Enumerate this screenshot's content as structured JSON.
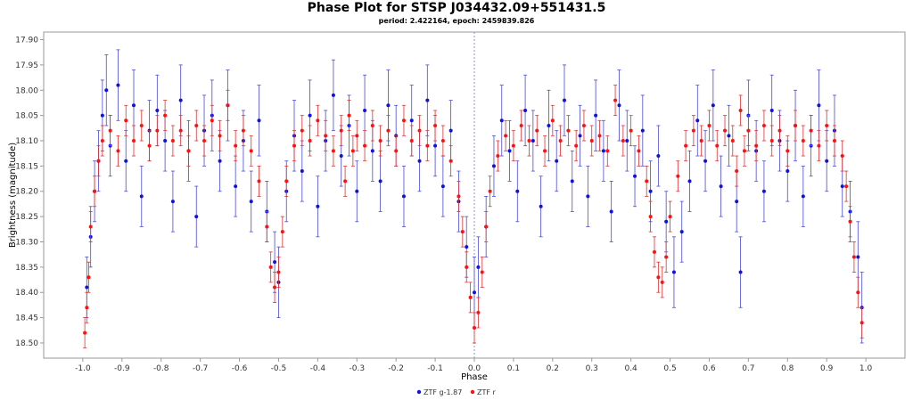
{
  "chart_data": {
    "type": "scatter",
    "title": "Phase Plot for STSP J034432.09+551431.5",
    "subtitle": "period: 2.422164, epoch: 2459839.826",
    "xlabel": "Phase",
    "ylabel": "Brightness (magnitude)",
    "xlim": [
      -1.1,
      1.1
    ],
    "ylim": [
      18.53,
      17.885
    ],
    "y_inverted": true,
    "x_ticks": [
      "-1.0",
      "-0.9",
      "-0.8",
      "-0.7",
      "-0.6",
      "-0.5",
      "-0.4",
      "-0.3",
      "-0.2",
      "-0.1",
      "0.0",
      "0.1",
      "0.2",
      "0.3",
      "0.4",
      "0.5",
      "0.6",
      "0.7",
      "0.8",
      "0.9",
      "1.0"
    ],
    "y_ticks": [
      "17.90",
      "17.95",
      "18.00",
      "18.05",
      "18.10",
      "18.15",
      "18.20",
      "18.25",
      "18.30",
      "18.35",
      "18.40",
      "18.45",
      "18.50"
    ],
    "grid": false,
    "legend_position": "bottom-center",
    "reference_line_x": 0.0,
    "series": [
      {
        "name": "ZTF g-1.87",
        "color": "#1010e0",
        "errorbar_color": "#4a4ad8",
        "points": [
          [
            -0.99,
            18.39,
            0.06
          ],
          [
            -0.98,
            18.29,
            0.06
          ],
          [
            -0.97,
            18.2,
            0.06
          ],
          [
            -0.96,
            18.14,
            0.06
          ],
          [
            -0.95,
            18.05,
            0.07
          ],
          [
            -0.94,
            18.0,
            0.07
          ],
          [
            -0.93,
            18.11,
            0.06
          ],
          [
            -0.91,
            17.99,
            0.07
          ],
          [
            -0.89,
            18.14,
            0.06
          ],
          [
            -0.87,
            18.03,
            0.07
          ],
          [
            -0.85,
            18.21,
            0.06
          ],
          [
            -0.83,
            18.08,
            0.06
          ],
          [
            -0.81,
            18.04,
            0.07
          ],
          [
            -0.79,
            18.1,
            0.06
          ],
          [
            -0.77,
            18.22,
            0.06
          ],
          [
            -0.75,
            18.02,
            0.07
          ],
          [
            -0.73,
            18.12,
            0.06
          ],
          [
            -0.71,
            18.25,
            0.06
          ],
          [
            -0.69,
            18.08,
            0.07
          ],
          [
            -0.67,
            18.05,
            0.07
          ],
          [
            -0.65,
            18.14,
            0.06
          ],
          [
            -0.63,
            18.03,
            0.07
          ],
          [
            -0.61,
            18.19,
            0.06
          ],
          [
            -0.59,
            18.1,
            0.06
          ],
          [
            -0.57,
            18.22,
            0.06
          ],
          [
            -0.55,
            18.06,
            0.07
          ],
          [
            -0.53,
            18.24,
            0.06
          ],
          [
            -0.51,
            18.34,
            0.06
          ],
          [
            -0.5,
            18.38,
            0.07
          ],
          [
            -0.48,
            18.2,
            0.06
          ],
          [
            -0.46,
            18.09,
            0.07
          ],
          [
            -0.44,
            18.16,
            0.06
          ],
          [
            -0.42,
            18.05,
            0.07
          ],
          [
            -0.4,
            18.23,
            0.06
          ],
          [
            -0.38,
            18.1,
            0.06
          ],
          [
            -0.36,
            18.01,
            0.07
          ],
          [
            -0.34,
            18.13,
            0.06
          ],
          [
            -0.32,
            18.07,
            0.06
          ],
          [
            -0.3,
            18.2,
            0.06
          ],
          [
            -0.28,
            18.04,
            0.07
          ],
          [
            -0.26,
            18.12,
            0.06
          ],
          [
            -0.24,
            18.18,
            0.06
          ],
          [
            -0.22,
            18.03,
            0.07
          ],
          [
            -0.2,
            18.09,
            0.06
          ],
          [
            -0.18,
            18.21,
            0.06
          ],
          [
            -0.16,
            18.06,
            0.07
          ],
          [
            -0.14,
            18.14,
            0.06
          ],
          [
            -0.12,
            18.02,
            0.07
          ],
          [
            -0.1,
            18.11,
            0.06
          ],
          [
            -0.08,
            18.19,
            0.06
          ],
          [
            -0.06,
            18.08,
            0.06
          ],
          [
            -0.04,
            18.22,
            0.06
          ],
          [
            -0.02,
            18.31,
            0.06
          ],
          [
            0.0,
            18.4,
            0.07
          ],
          [
            0.01,
            18.35,
            0.06
          ],
          [
            0.03,
            18.27,
            0.06
          ],
          [
            0.05,
            18.15,
            0.06
          ],
          [
            0.07,
            18.06,
            0.07
          ],
          [
            0.09,
            18.12,
            0.06
          ],
          [
            0.11,
            18.2,
            0.06
          ],
          [
            0.13,
            18.04,
            0.07
          ],
          [
            0.15,
            18.1,
            0.06
          ],
          [
            0.17,
            18.23,
            0.06
          ],
          [
            0.19,
            18.07,
            0.07
          ],
          [
            0.21,
            18.14,
            0.06
          ],
          [
            0.23,
            18.02,
            0.07
          ],
          [
            0.25,
            18.18,
            0.06
          ],
          [
            0.27,
            18.09,
            0.06
          ],
          [
            0.29,
            18.21,
            0.06
          ],
          [
            0.31,
            18.05,
            0.07
          ],
          [
            0.33,
            18.12,
            0.06
          ],
          [
            0.35,
            18.24,
            0.06
          ],
          [
            0.37,
            18.03,
            0.07
          ],
          [
            0.39,
            18.1,
            0.06
          ],
          [
            0.41,
            18.17,
            0.06
          ],
          [
            0.43,
            18.08,
            0.07
          ],
          [
            0.45,
            18.2,
            0.06
          ],
          [
            0.47,
            18.13,
            0.06
          ],
          [
            0.49,
            18.26,
            0.06
          ],
          [
            0.51,
            18.36,
            0.07
          ],
          [
            0.53,
            18.28,
            0.06
          ],
          [
            0.55,
            18.18,
            0.06
          ],
          [
            0.57,
            18.06,
            0.07
          ],
          [
            0.59,
            18.14,
            0.06
          ],
          [
            0.61,
            18.03,
            0.07
          ],
          [
            0.63,
            18.19,
            0.06
          ],
          [
            0.65,
            18.09,
            0.06
          ],
          [
            0.67,
            18.22,
            0.06
          ],
          [
            0.68,
            18.36,
            0.07
          ],
          [
            0.7,
            18.05,
            0.07
          ],
          [
            0.72,
            18.12,
            0.06
          ],
          [
            0.74,
            18.2,
            0.06
          ],
          [
            0.76,
            18.04,
            0.07
          ],
          [
            0.78,
            18.1,
            0.06
          ],
          [
            0.8,
            18.16,
            0.06
          ],
          [
            0.82,
            18.07,
            0.07
          ],
          [
            0.84,
            18.21,
            0.06
          ],
          [
            0.86,
            18.11,
            0.06
          ],
          [
            0.88,
            18.03,
            0.07
          ],
          [
            0.9,
            18.14,
            0.06
          ],
          [
            0.92,
            18.08,
            0.07
          ],
          [
            0.94,
            18.19,
            0.06
          ],
          [
            0.96,
            18.24,
            0.06
          ],
          [
            0.98,
            18.33,
            0.07
          ],
          [
            0.99,
            18.43,
            0.07
          ]
        ]
      },
      {
        "name": "ZTF r",
        "color": "#ff1010",
        "errorbar_color": "#e03030",
        "points": [
          [
            -0.995,
            18.48,
            0.03
          ],
          [
            -0.99,
            18.43,
            0.03
          ],
          [
            -0.985,
            18.37,
            0.03
          ],
          [
            -0.98,
            18.27,
            0.03
          ],
          [
            -0.97,
            18.2,
            0.03
          ],
          [
            -0.96,
            18.14,
            0.03
          ],
          [
            -0.95,
            18.1,
            0.03
          ],
          [
            -0.93,
            18.08,
            0.03
          ],
          [
            -0.91,
            18.12,
            0.03
          ],
          [
            -0.89,
            18.06,
            0.03
          ],
          [
            -0.87,
            18.1,
            0.03
          ],
          [
            -0.85,
            18.07,
            0.03
          ],
          [
            -0.83,
            18.11,
            0.03
          ],
          [
            -0.81,
            18.08,
            0.03
          ],
          [
            -0.79,
            18.05,
            0.03
          ],
          [
            -0.77,
            18.1,
            0.03
          ],
          [
            -0.75,
            18.08,
            0.03
          ],
          [
            -0.73,
            18.12,
            0.03
          ],
          [
            -0.71,
            18.07,
            0.03
          ],
          [
            -0.69,
            18.1,
            0.03
          ],
          [
            -0.67,
            18.06,
            0.03
          ],
          [
            -0.65,
            18.09,
            0.03
          ],
          [
            -0.63,
            18.03,
            0.03
          ],
          [
            -0.61,
            18.11,
            0.03
          ],
          [
            -0.59,
            18.08,
            0.03
          ],
          [
            -0.57,
            18.12,
            0.03
          ],
          [
            -0.55,
            18.18,
            0.03
          ],
          [
            -0.53,
            18.27,
            0.03
          ],
          [
            -0.52,
            18.35,
            0.03
          ],
          [
            -0.51,
            18.39,
            0.03
          ],
          [
            -0.5,
            18.36,
            0.03
          ],
          [
            -0.49,
            18.28,
            0.03
          ],
          [
            -0.48,
            18.18,
            0.03
          ],
          [
            -0.46,
            18.11,
            0.03
          ],
          [
            -0.44,
            18.08,
            0.03
          ],
          [
            -0.42,
            18.1,
            0.03
          ],
          [
            -0.4,
            18.06,
            0.03
          ],
          [
            -0.38,
            18.09,
            0.03
          ],
          [
            -0.36,
            18.12,
            0.03
          ],
          [
            -0.34,
            18.08,
            0.03
          ],
          [
            -0.33,
            18.18,
            0.03
          ],
          [
            -0.32,
            18.05,
            0.03
          ],
          [
            -0.31,
            18.12,
            0.03
          ],
          [
            -0.3,
            18.09,
            0.03
          ],
          [
            -0.28,
            18.11,
            0.03
          ],
          [
            -0.26,
            18.07,
            0.03
          ],
          [
            -0.24,
            18.1,
            0.03
          ],
          [
            -0.22,
            18.08,
            0.03
          ],
          [
            -0.2,
            18.12,
            0.03
          ],
          [
            -0.18,
            18.06,
            0.03
          ],
          [
            -0.16,
            18.1,
            0.03
          ],
          [
            -0.14,
            18.08,
            0.03
          ],
          [
            -0.12,
            18.11,
            0.03
          ],
          [
            -0.1,
            18.07,
            0.03
          ],
          [
            -0.08,
            18.1,
            0.03
          ],
          [
            -0.06,
            18.14,
            0.03
          ],
          [
            -0.04,
            18.21,
            0.03
          ],
          [
            -0.03,
            18.28,
            0.03
          ],
          [
            -0.02,
            18.35,
            0.03
          ],
          [
            -0.01,
            18.41,
            0.03
          ],
          [
            0.0,
            18.47,
            0.03
          ],
          [
            0.01,
            18.44,
            0.03
          ],
          [
            0.02,
            18.36,
            0.03
          ],
          [
            0.03,
            18.27,
            0.03
          ],
          [
            0.04,
            18.2,
            0.03
          ],
          [
            0.06,
            18.13,
            0.03
          ],
          [
            0.08,
            18.09,
            0.03
          ],
          [
            0.1,
            18.11,
            0.03
          ],
          [
            0.12,
            18.07,
            0.03
          ],
          [
            0.14,
            18.1,
            0.03
          ],
          [
            0.16,
            18.08,
            0.03
          ],
          [
            0.18,
            18.12,
            0.03
          ],
          [
            0.2,
            18.06,
            0.03
          ],
          [
            0.22,
            18.1,
            0.03
          ],
          [
            0.24,
            18.08,
            0.03
          ],
          [
            0.26,
            18.11,
            0.03
          ],
          [
            0.28,
            18.07,
            0.03
          ],
          [
            0.3,
            18.1,
            0.03
          ],
          [
            0.32,
            18.09,
            0.03
          ],
          [
            0.34,
            18.12,
            0.03
          ],
          [
            0.36,
            18.02,
            0.03
          ],
          [
            0.38,
            18.1,
            0.03
          ],
          [
            0.4,
            18.08,
            0.03
          ],
          [
            0.42,
            18.12,
            0.03
          ],
          [
            0.44,
            18.18,
            0.03
          ],
          [
            0.45,
            18.25,
            0.03
          ],
          [
            0.46,
            18.32,
            0.03
          ],
          [
            0.47,
            18.37,
            0.03
          ],
          [
            0.48,
            18.38,
            0.03
          ],
          [
            0.49,
            18.33,
            0.03
          ],
          [
            0.5,
            18.25,
            0.03
          ],
          [
            0.52,
            18.17,
            0.03
          ],
          [
            0.54,
            18.11,
            0.03
          ],
          [
            0.56,
            18.08,
            0.03
          ],
          [
            0.58,
            18.1,
            0.03
          ],
          [
            0.6,
            18.07,
            0.03
          ],
          [
            0.62,
            18.11,
            0.03
          ],
          [
            0.64,
            18.08,
            0.03
          ],
          [
            0.66,
            18.1,
            0.03
          ],
          [
            0.67,
            18.16,
            0.03
          ],
          [
            0.68,
            18.04,
            0.03
          ],
          [
            0.69,
            18.12,
            0.03
          ],
          [
            0.7,
            18.08,
            0.03
          ],
          [
            0.72,
            18.11,
            0.03
          ],
          [
            0.74,
            18.07,
            0.03
          ],
          [
            0.76,
            18.1,
            0.03
          ],
          [
            0.78,
            18.08,
            0.03
          ],
          [
            0.8,
            18.12,
            0.03
          ],
          [
            0.82,
            18.07,
            0.03
          ],
          [
            0.84,
            18.1,
            0.03
          ],
          [
            0.86,
            18.08,
            0.03
          ],
          [
            0.88,
            18.11,
            0.03
          ],
          [
            0.9,
            18.07,
            0.03
          ],
          [
            0.92,
            18.1,
            0.03
          ],
          [
            0.94,
            18.13,
            0.03
          ],
          [
            0.95,
            18.19,
            0.03
          ],
          [
            0.96,
            18.26,
            0.03
          ],
          [
            0.97,
            18.33,
            0.03
          ],
          [
            0.98,
            18.4,
            0.03
          ],
          [
            0.99,
            18.46,
            0.03
          ]
        ]
      }
    ]
  }
}
